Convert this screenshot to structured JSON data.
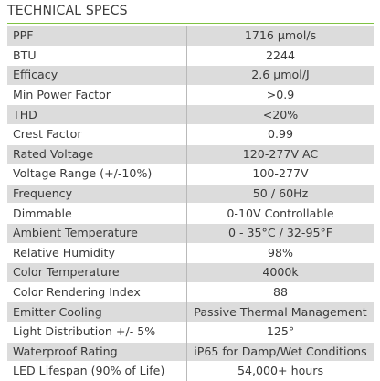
{
  "title": "TECHNICAL SPECS",
  "colors": {
    "accent_rule": "#7fc242",
    "row_shade": "#dcdcdc",
    "text": "#3a3a3a"
  },
  "rows": [
    {
      "label": "PPF",
      "value": "1716 µmol/s"
    },
    {
      "label": "BTU",
      "value": "2244"
    },
    {
      "label": "Efficacy",
      "value": "2.6 µmol/J"
    },
    {
      "label": "Min Power Factor",
      "value": ">0.9"
    },
    {
      "label": "THD",
      "value": "<20%"
    },
    {
      "label": "Crest Factor",
      "value": "0.99"
    },
    {
      "label": "Rated Voltage",
      "value": "120-277V AC"
    },
    {
      "label": "Voltage Range (+/-10%)",
      "value": "100-277V"
    },
    {
      "label": "Frequency",
      "value": "50 / 60Hz"
    },
    {
      "label": "Dimmable",
      "value": "0-10V Controllable"
    },
    {
      "label": "Ambient Temperature",
      "value": "0 - 35°C / 32-95°F"
    },
    {
      "label": "Relative Humidity",
      "value": "98%"
    },
    {
      "label": "Color Temperature",
      "value": "4000k"
    },
    {
      "label": "Color Rendering Index",
      "value": "88"
    },
    {
      "label": "Emitter Cooling",
      "value": "Passive Thermal Management"
    },
    {
      "label": "Light Distribution +/- 5%",
      "value": "125°"
    },
    {
      "label": "Waterproof Rating",
      "value": "iP65 for Damp/Wet Conditions"
    },
    {
      "label": "LED Lifespan (90% of Life)",
      "value": "54,000+ hours"
    }
  ]
}
